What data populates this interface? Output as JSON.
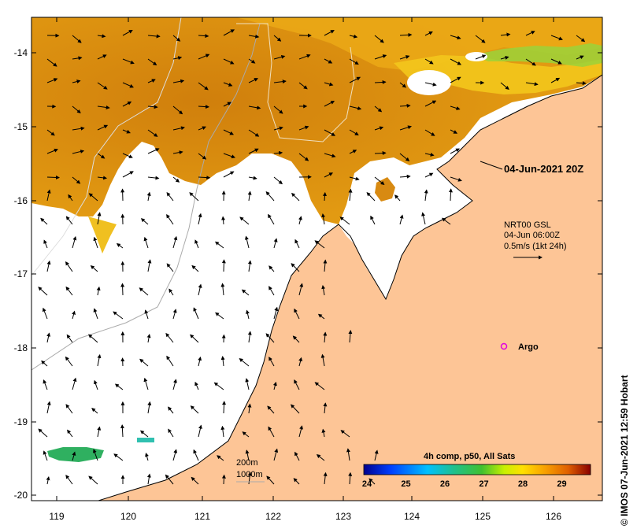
{
  "map": {
    "timestamp_label": "04-Jun-2021 20Z",
    "current_vectors": {
      "line1": "NRT00 GSL",
      "line2": "04-Jun 06:00Z",
      "line3": "0.5m/s (1kt 24h)"
    },
    "argo_label": "Argo",
    "isobaths": {
      "shallow": "200m",
      "deep": "1000m"
    },
    "colorbar": {
      "title": "4h comp, p50, All Sats",
      "ticks": [
        "24",
        "25",
        "26",
        "27",
        "28",
        "29"
      ],
      "range": [
        24,
        29.8
      ]
    },
    "credit": "© IMOS 07-Jun-2021 12:59 Hobart",
    "lon_ticks": [
      "119",
      "120",
      "121",
      "122",
      "123",
      "124",
      "125",
      "126"
    ],
    "lat_ticks": [
      "-14",
      "-15",
      "-16",
      "-17",
      "-18",
      "-19",
      "-20"
    ],
    "colors": {
      "land": "#fdc596",
      "sst_warm": "#d98a0e",
      "sst_mid": "#e9a715",
      "sst_cool": "#ffd215",
      "sst_green": "#3cb44a",
      "argo": "#e000e0",
      "no_data": "#ffffff"
    }
  }
}
